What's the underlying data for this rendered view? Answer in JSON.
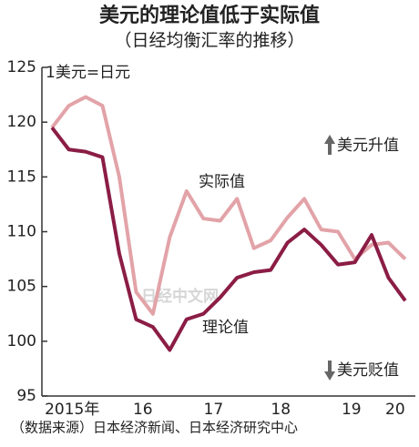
{
  "chart_data": {
    "type": "line",
    "title": "美元的理论值低于实际值",
    "subtitle": "（日经均衡汇率的推移）",
    "unit_label": "1美元=日元",
    "source": "（数据来源）日本经济新闻、日本经济研究中心",
    "watermark": "日经中文网",
    "annotations": [
      "美元升值",
      "美元贬值",
      "实际值",
      "理论值"
    ],
    "x": [
      2015.0,
      2015.25,
      2015.5,
      2015.75,
      2016.0,
      2016.25,
      2016.5,
      2016.75,
      2017.0,
      2017.25,
      2017.5,
      2017.75,
      2018.0,
      2018.25,
      2018.5,
      2018.75,
      2019.0,
      2019.25,
      2019.5,
      2019.75,
      2020.0,
      2020.25
    ],
    "xlim": [
      2014.85,
      2020.4
    ],
    "xticks": [
      {
        "value": 2015.3,
        "label": "2015年"
      },
      {
        "value": 2016.35,
        "label": "16"
      },
      {
        "value": 2017.4,
        "label": "17"
      },
      {
        "value": 2018.4,
        "label": "18"
      },
      {
        "value": 2019.45,
        "label": "19"
      },
      {
        "value": 2020.1,
        "label": "20"
      }
    ],
    "ylim": [
      95,
      125
    ],
    "yticks": [
      95,
      100,
      105,
      110,
      115,
      120,
      125
    ],
    "series": [
      {
        "name": "实际值",
        "color": "#e2a3a8",
        "values": [
          119.5,
          121.5,
          122.3,
          121.5,
          115,
          104.5,
          102.5,
          109.5,
          113.7,
          111.2,
          111,
          113,
          108.5,
          109.2,
          111.3,
          113,
          110.2,
          110,
          107.5,
          108.8,
          109,
          107.5
        ]
      },
      {
        "name": "理论值",
        "color": "#8b1d45",
        "values": [
          119.5,
          117.5,
          117.3,
          116.8,
          108,
          102,
          101.3,
          99.2,
          102,
          102.5,
          104,
          105.8,
          106.3,
          106.5,
          109,
          110.2,
          108.8,
          107,
          107.2,
          109.7,
          105.8,
          103.7
        ]
      }
    ]
  }
}
